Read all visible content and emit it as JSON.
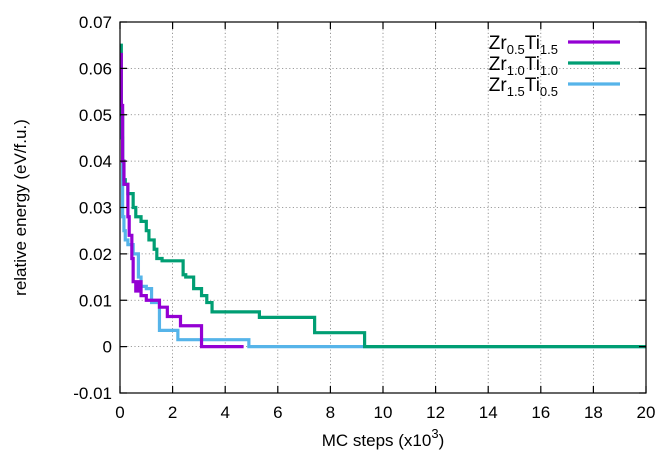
{
  "chart_data": {
    "type": "line",
    "title": "",
    "xlabel": "MC steps (x10",
    "xlabel_sup": "3",
    "xlabel_end": ")",
    "ylabel": "relative energy (eV/f.u.)",
    "xlim": [
      0,
      20
    ],
    "ylim": [
      -0.01,
      0.07
    ],
    "x_ticks": [
      0,
      2,
      4,
      6,
      8,
      10,
      12,
      14,
      16,
      18,
      20
    ],
    "x_tick_labels": [
      "0",
      "2",
      "4",
      "6",
      "8",
      "10",
      "12",
      "14",
      "16",
      "18",
      "20"
    ],
    "y_ticks": [
      -0.01,
      0,
      0.01,
      0.02,
      0.03,
      0.04,
      0.05,
      0.06,
      0.07
    ],
    "y_tick_labels": [
      "-0.01",
      "0",
      "0.01",
      "0.02",
      "0.03",
      "0.04",
      "0.05",
      "0.06",
      "0.07"
    ],
    "grid": true,
    "legend_position": "top-right",
    "series": [
      {
        "legend": [
          {
            "t": "Zr",
            "sub": false
          },
          {
            "t": "0.5",
            "sub": true
          },
          {
            "t": "Ti",
            "sub": false
          },
          {
            "t": "1.5",
            "sub": true
          }
        ],
        "color": "#9400d3",
        "step": true,
        "x": [
          0,
          0.05,
          0.1,
          0.15,
          0.2,
          0.3,
          0.35,
          0.45,
          0.5,
          0.6,
          0.7,
          0.8,
          0.9,
          1.0,
          1.1,
          1.3,
          1.5,
          1.8,
          2.0,
          2.3,
          2.7,
          3.1,
          3.5,
          4.7
        ],
        "y": [
          0.063,
          0.052,
          0.04,
          0.035,
          0.035,
          0.028,
          0.024,
          0.019,
          0.014,
          0.012,
          0.014,
          0.011,
          0.011,
          0.01,
          0.01,
          0.01,
          0.0085,
          0.0065,
          0.0065,
          0.0045,
          0.0045,
          0.0,
          0.0,
          0.0
        ]
      },
      {
        "legend": [
          {
            "t": "Zr",
            "sub": false
          },
          {
            "t": "1.0",
            "sub": true
          },
          {
            "t": "Ti",
            "sub": false
          },
          {
            "t": "1.0",
            "sub": true
          }
        ],
        "color": "#009e73",
        "step": true,
        "x": [
          0,
          0.05,
          0.1,
          0.15,
          0.2,
          0.3,
          0.5,
          0.6,
          0.8,
          1.0,
          1.1,
          1.3,
          1.4,
          1.6,
          2.4,
          2.5,
          2.8,
          3.1,
          3.3,
          3.5,
          4.4,
          5.3,
          7.4,
          9.3,
          20
        ],
        "y": [
          0.065,
          0.05,
          0.04,
          0.036,
          0.035,
          0.033,
          0.03,
          0.028,
          0.027,
          0.025,
          0.023,
          0.021,
          0.019,
          0.0185,
          0.0155,
          0.015,
          0.0125,
          0.011,
          0.0095,
          0.0075,
          0.0075,
          0.0063,
          0.003,
          0.0,
          0.0
        ]
      },
      {
        "legend": [
          {
            "t": "Zr",
            "sub": false
          },
          {
            "t": "1.5",
            "sub": true
          },
          {
            "t": "Ti",
            "sub": false
          },
          {
            "t": "0.5",
            "sub": true
          }
        ],
        "color": "#56b4e9",
        "step": true,
        "x": [
          0,
          0.05,
          0.1,
          0.15,
          0.2,
          0.3,
          0.5,
          0.7,
          0.8,
          1.0,
          1.2,
          1.5,
          1.7,
          2.0,
          2.2,
          2.8,
          4.9,
          20
        ],
        "y": [
          0.055,
          0.045,
          0.028,
          0.025,
          0.023,
          0.022,
          0.02,
          0.015,
          0.013,
          0.0125,
          0.0095,
          0.0035,
          0.0035,
          0.0035,
          0.0015,
          0.0015,
          0.0,
          0.0
        ]
      }
    ]
  }
}
